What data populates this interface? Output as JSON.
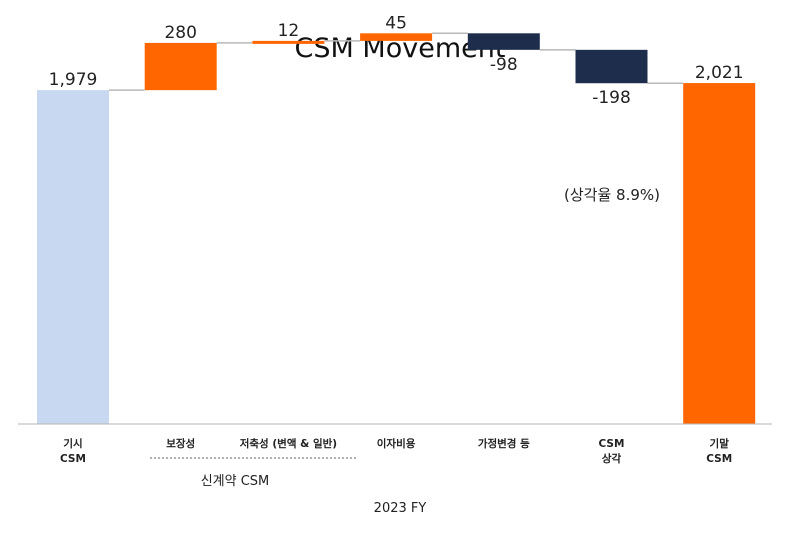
{
  "chart_data": {
    "type": "waterfall",
    "title": "CSM Movement",
    "categories": [
      [
        "기시",
        "CSM"
      ],
      [
        "보장성"
      ],
      [
        "저축성 (변액 & 일반)"
      ],
      [
        "이자비용"
      ],
      [
        "가정변경 등"
      ],
      [
        "CSM",
        "상각"
      ],
      [
        "기말",
        "CSM"
      ]
    ],
    "values": [
      1979,
      280,
      12,
      45,
      -98,
      -198,
      2021
    ],
    "labels": [
      "1,979",
      "280",
      "12",
      "45",
      "-98",
      "-198",
      "2,021"
    ],
    "kinds": [
      "total",
      "delta",
      "delta",
      "delta",
      "delta",
      "delta",
      "total"
    ],
    "colors": [
      "#c8d8f0",
      "#ff6600",
      "#ff6600",
      "#ff6600",
      "#1f2d4d",
      "#1f2d4d",
      "#ff6600"
    ],
    "annotation": "(상각율 8.9%)",
    "group_label": "신계약 CSM",
    "xlabel": "2023 FY",
    "ylim": [
      0,
      2300
    ]
  }
}
